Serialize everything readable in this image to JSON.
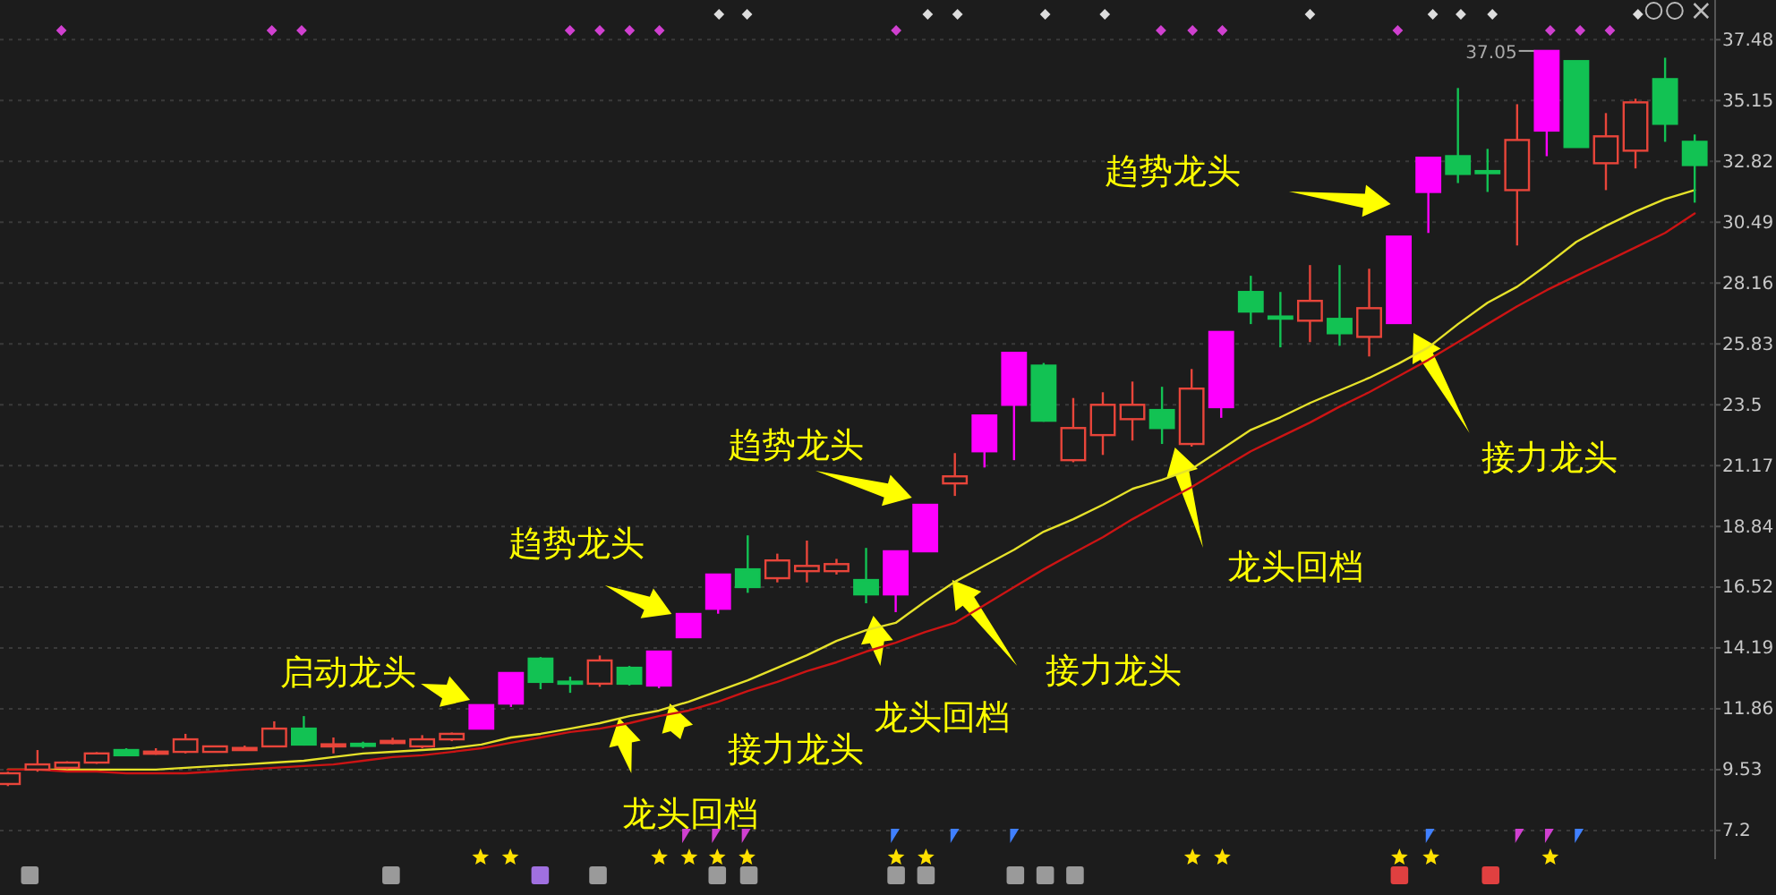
{
  "chart_data": {
    "type": "candlestick",
    "categories": [
      null,
      null,
      null,
      null,
      null,
      null,
      null,
      null,
      null,
      null,
      null,
      null,
      null,
      null,
      null,
      null,
      null,
      null,
      null,
      null,
      null,
      null,
      null,
      null,
      null,
      null,
      null,
      null,
      null,
      null,
      null,
      null,
      null,
      null,
      null,
      null,
      null,
      null,
      null,
      null,
      null,
      null,
      null,
      null,
      null,
      null,
      null,
      null,
      null,
      null,
      null,
      null,
      null,
      null,
      null,
      null,
      null,
      null
    ],
    "series": [
      {
        "type": "line",
        "color": "#e6e22a",
        "values": [
          9.53,
          9.53,
          9.53,
          9.53,
          9.53,
          9.53,
          9.6,
          9.67,
          9.73,
          9.8,
          9.87,
          10.01,
          10.15,
          10.21,
          10.28,
          10.35,
          10.49,
          10.76,
          10.9,
          11.1,
          11.31,
          11.58,
          11.79,
          12.13,
          12.54,
          12.95,
          13.43,
          13.91,
          14.46,
          14.87,
          15.15,
          15.97,
          16.72,
          17.34,
          17.95,
          18.64,
          19.12,
          19.67,
          20.28,
          20.63,
          21.04,
          21.79,
          22.54,
          23.02,
          23.57,
          24.05,
          24.53,
          25.08,
          25.7,
          26.59,
          27.41,
          28.02,
          28.85,
          29.74,
          30.35,
          30.9,
          31.38,
          31.72
        ]
      },
      {
        "type": "line",
        "color": "#cc1414",
        "values": [
          9.53,
          9.53,
          9.46,
          9.46,
          9.39,
          9.39,
          9.39,
          9.46,
          9.53,
          9.6,
          9.67,
          9.73,
          9.87,
          10.01,
          10.08,
          10.21,
          10.35,
          10.56,
          10.76,
          10.97,
          11.1,
          11.31,
          11.58,
          11.79,
          12.13,
          12.54,
          12.89,
          13.3,
          13.64,
          14.05,
          14.39,
          14.8,
          15.15,
          15.83,
          16.52,
          17.2,
          17.82,
          18.43,
          19.12,
          19.74,
          20.35,
          21.04,
          21.72,
          22.27,
          22.82,
          23.43,
          23.98,
          24.6,
          25.22,
          25.9,
          26.59,
          27.27,
          27.89,
          28.44,
          28.98,
          29.53,
          30.08,
          30.83
        ]
      },
      {
        "color": "#e8453a",
        "colors": [
          "#e8453a",
          "#e8453a",
          "#e8453a",
          "#e8453a",
          "#12c253",
          "#e8453a",
          "#e8453a",
          "#e8453a",
          "#e8453a",
          "#e8453a",
          "#12c253",
          "#e8453a",
          "#12c253",
          "#e8453a",
          "#e8453a",
          "#e8453a",
          "#ff00ff",
          "#ff00ff",
          "#12c253",
          "#12c253",
          "#e8453a",
          "#12c253",
          "#ff00ff",
          "#ff00ff",
          "#ff00ff",
          "#12c253",
          "#e8453a",
          "#e8453a",
          "#e8453a",
          "#12c253",
          "#ff00ff",
          "#ff00ff",
          "#e8453a",
          "#ff00ff",
          "#ff00ff",
          "#12c253",
          "#e8453a",
          "#e8453a",
          "#e8453a",
          "#12c253",
          "#e8453a",
          "#ff00ff",
          "#12c253",
          "#12c253",
          "#e8453a",
          "#12c253",
          "#e8453a",
          "#ff00ff",
          "#ff00ff",
          "#12c253",
          "#12c253",
          "#e8453a",
          "#ff00ff",
          "#12c253",
          "#e8453a",
          "#e8453a",
          "#12c253",
          "#12c253"
        ],
        "ohlc": [
          [
            8.98,
            9.45,
            8.9,
            9.39
          ],
          [
            9.53,
            10.28,
            9.45,
            9.73
          ],
          [
            9.6,
            9.85,
            9.55,
            9.8
          ],
          [
            9.8,
            10.2,
            9.75,
            10.15
          ],
          [
            10.28,
            10.35,
            10.05,
            10.08
          ],
          [
            10.2,
            10.35,
            10.1,
            10.22
          ],
          [
            10.21,
            10.9,
            10.15,
            10.69
          ],
          [
            10.21,
            10.45,
            10.18,
            10.42
          ],
          [
            10.33,
            10.45,
            10.25,
            10.36
          ],
          [
            10.42,
            11.38,
            10.4,
            11.1
          ],
          [
            11.1,
            11.58,
            10.45,
            10.49
          ],
          [
            10.48,
            10.76,
            10.15,
            10.5
          ],
          [
            10.52,
            10.6,
            10.35,
            10.46
          ],
          [
            10.6,
            10.75,
            10.5,
            10.63
          ],
          [
            10.42,
            10.85,
            10.35,
            10.69
          ],
          [
            10.69,
            10.95,
            10.62,
            10.9
          ],
          [
            11.1,
            12.0,
            11.1,
            12.0
          ],
          [
            12.06,
            13.23,
            11.93,
            13.23
          ],
          [
            13.78,
            13.84,
            12.61,
            12.89
          ],
          [
            12.9,
            13.09,
            12.47,
            12.88
          ],
          [
            12.82,
            13.9,
            12.7,
            13.71
          ],
          [
            13.43,
            13.5,
            12.75,
            12.82
          ],
          [
            12.75,
            14.05,
            12.65,
            14.05
          ],
          [
            14.6,
            15.49,
            14.6,
            15.49
          ],
          [
            15.69,
            17.0,
            15.5,
            17.0
          ],
          [
            17.2,
            18.5,
            16.3,
            16.52
          ],
          [
            16.86,
            17.8,
            16.7,
            17.54
          ],
          [
            17.13,
            18.3,
            16.7,
            17.33
          ],
          [
            17.13,
            17.6,
            17.0,
            17.4
          ],
          [
            16.79,
            18.02,
            15.9,
            16.24
          ],
          [
            16.24,
            17.89,
            15.56,
            17.89
          ],
          [
            17.89,
            19.67,
            17.89,
            19.67
          ],
          [
            20.49,
            21.65,
            20.01,
            20.76
          ],
          [
            21.72,
            23.09,
            21.1,
            23.09
          ],
          [
            23.5,
            25.49,
            21.38,
            25.49
          ],
          [
            25.0,
            25.1,
            22.85,
            22.89
          ],
          [
            21.38,
            23.76,
            21.3,
            22.61
          ],
          [
            22.34,
            23.98,
            21.58,
            23.5
          ],
          [
            22.95,
            24.39,
            22.13,
            23.5
          ],
          [
            23.3,
            24.19,
            22.0,
            22.61
          ],
          [
            22.0,
            24.87,
            21.9,
            24.12
          ],
          [
            23.41,
            26.29,
            23.0,
            26.29
          ],
          [
            27.82,
            28.44,
            26.59,
            27.07
          ],
          [
            26.88,
            27.82,
            25.7,
            26.84
          ],
          [
            26.72,
            28.85,
            25.9,
            27.48
          ],
          [
            26.79,
            28.85,
            25.76,
            26.24
          ],
          [
            26.1,
            28.71,
            25.35,
            27.2
          ],
          [
            26.63,
            29.94,
            26.63,
            29.94
          ],
          [
            31.65,
            32.96,
            30.08,
            32.96
          ],
          [
            33.02,
            35.63,
            31.99,
            32.34
          ],
          [
            32.45,
            33.3,
            31.65,
            32.41
          ],
          [
            31.72,
            35.01,
            29.6,
            33.64
          ],
          [
            34.0,
            37.05,
            33.02,
            37.05
          ],
          [
            36.66,
            36.66,
            33.37,
            33.37
          ],
          [
            32.75,
            34.67,
            31.72,
            33.78
          ],
          [
            33.23,
            35.22,
            32.55,
            35.08
          ],
          [
            35.97,
            36.79,
            33.57,
            34.26
          ],
          [
            33.57,
            33.85,
            31.24,
            32.68
          ]
        ]
      }
    ],
    "ylim": [
      6.1,
      39.0
    ],
    "yticks": [
      7.2,
      9.53,
      11.86,
      14.19,
      16.52,
      18.84,
      21.17,
      23.5,
      25.83,
      28.16,
      30.49,
      32.82,
      35.15,
      37.48
    ],
    "grid": "y",
    "tick_labels": "y",
    "annotations": [
      "启动龙头",
      "趋势龙头",
      "趋势龙头",
      "趋势龙头",
      "接力龙头",
      "龙头回档",
      "龙头回档",
      "接力龙头",
      "龙头回档",
      "接力龙头",
      "37.05"
    ]
  }
}
